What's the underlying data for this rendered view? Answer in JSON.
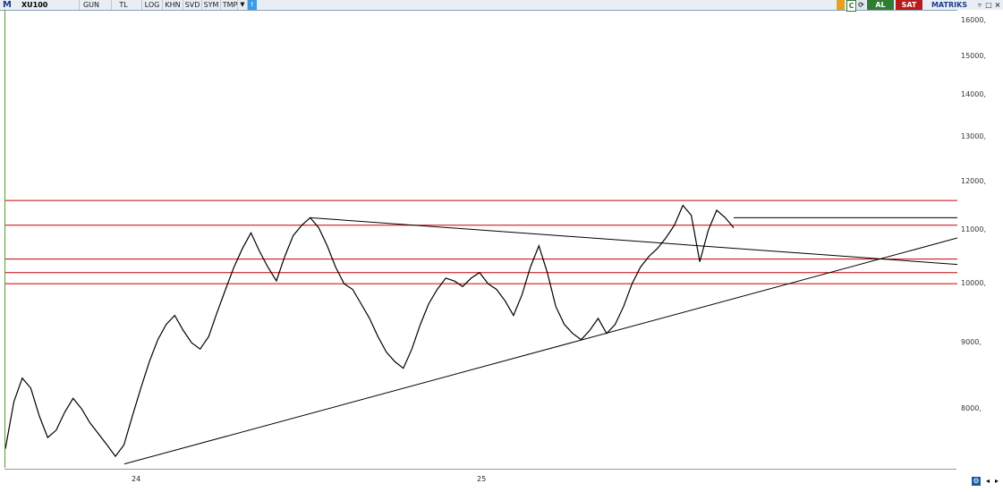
{
  "toolbar": {
    "logo": "M",
    "symbol": "XU100",
    "period": "GUN",
    "currency": "TL",
    "scale": "LOG",
    "khn": "KHN",
    "svd": "SVD",
    "sym": "SYM",
    "tmp": "TMP",
    "dropdown_icon": "triangle-down-icon",
    "share_icon": "twitter-icon"
  },
  "right_toolbar": {
    "buy_label": "AL",
    "sell_label": "SAT",
    "brand": "MATRIKS",
    "c_label": "C"
  },
  "colors": {
    "horizontal_lines": "#cc0000",
    "trend_lines": "#000000",
    "price_line": "#000000",
    "buy": "#2e7d32",
    "sell": "#b71c1c"
  },
  "chart_data": {
    "type": "line",
    "scale": "log",
    "ylim": [
      7200,
      16300
    ],
    "y_ticks": [
      "16000,",
      "15000,",
      "14000,",
      "13000,",
      "12000,",
      "11000,",
      "10000,",
      "9000,",
      "8000,"
    ],
    "y_tick_values": [
      16000,
      15000,
      14000,
      13000,
      12000,
      11000,
      10000,
      9000,
      8000
    ],
    "x_labels": [
      "24",
      "25"
    ],
    "series": [
      {
        "values": [
          7450,
          8100,
          8450,
          8300,
          7900,
          7600,
          7700,
          7950,
          8150,
          8000,
          7800,
          7650,
          7500,
          7350,
          7500,
          7900,
          8300,
          8700,
          9050,
          9300,
          9450,
          9200,
          9000,
          8900,
          9100,
          9500,
          9900,
          10300,
          10650,
          10950,
          10600,
          10300,
          10050,
          10500,
          10900,
          11100,
          11250,
          11050,
          10700,
          10300,
          10000,
          9900,
          9650,
          9400,
          9100,
          8850,
          8700,
          8600,
          8900,
          9300,
          9650,
          9900,
          10100,
          10050,
          9950,
          10100,
          10200,
          10000,
          9900,
          9700,
          9450,
          9800,
          10300,
          10700,
          10200,
          9600,
          9300,
          9150,
          9050,
          9200,
          9400,
          9150,
          9300,
          9600,
          10000,
          10300,
          10500,
          10650,
          10850,
          11100,
          11500,
          11300,
          10400,
          11000,
          11400,
          11250,
          11050
        ],
        "x_start": 0,
        "x_end": 0.765
      }
    ],
    "horizontal_levels": [
      11600,
      11100,
      10450,
      10200,
      10000
    ],
    "flat_segment": {
      "level": 11250,
      "x_start": 0.765,
      "x_end": 1.0
    },
    "trend_lines": [
      {
        "from": {
          "x": 0.125,
          "y": 7250
        },
        "to": {
          "x": 1.0,
          "y": 10850
        }
      },
      {
        "from": {
          "x": 0.32,
          "y": 11250
        },
        "to": {
          "x": 1.0,
          "y": 10350
        }
      }
    ]
  }
}
